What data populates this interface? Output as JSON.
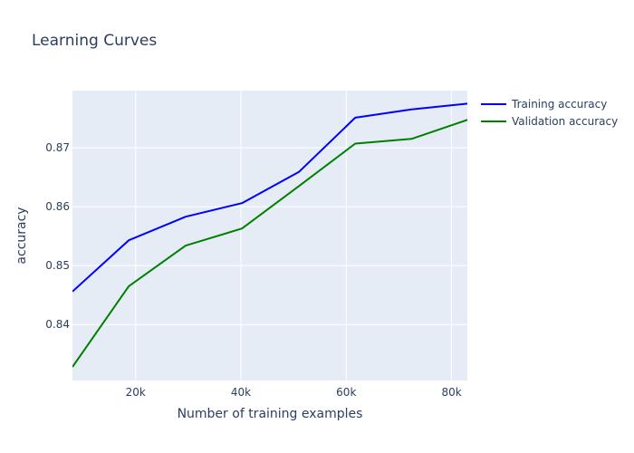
{
  "chart_data": {
    "type": "line",
    "title": "Learning Curves",
    "xlabel": "Number of training examples",
    "ylabel": "accuracy",
    "xlim": [
      8000,
      83000
    ],
    "ylim": [
      0.8305,
      0.8797
    ],
    "x_ticks": [
      20000,
      40000,
      60000,
      80000
    ],
    "x_tick_labels": [
      "20k",
      "40k",
      "60k",
      "80k"
    ],
    "y_ticks": [
      0.84,
      0.85,
      0.86,
      0.87
    ],
    "y_tick_labels": [
      "0.84",
      "0.85",
      "0.86",
      "0.87"
    ],
    "grid": true,
    "legend_position": "top-right",
    "x": [
      8000,
      18700,
      29500,
      40200,
      51000,
      61700,
      72400,
      83200
    ],
    "series": [
      {
        "name": "Training accuracy",
        "color": "#0000ff",
        "values": [
          0.8456,
          0.8543,
          0.8583,
          0.8606,
          0.8659,
          0.8751,
          0.8765,
          0.8775
        ]
      },
      {
        "name": "Validation accuracy",
        "color": "#008000",
        "values": [
          0.8328,
          0.8465,
          0.8534,
          0.8563,
          0.8635,
          0.8707,
          0.8715,
          0.8748
        ]
      }
    ]
  }
}
